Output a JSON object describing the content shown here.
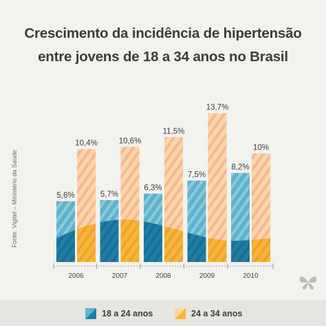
{
  "title": {
    "line1": "Crescimento da incidência de hipertensão",
    "line2": "entre jovens de 18 a 34 anos no Brasil"
  },
  "source": "Fonte: Vigitel – Ministério da Saúde",
  "colors": {
    "blue": "#5fb3cb",
    "blue_dark": "#1e7fa6",
    "orange": "#f7b53b",
    "orange_light": "#fbd89b",
    "background": "#f2f2ee"
  },
  "chart_data": {
    "type": "bar",
    "categories": [
      "2006",
      "2007",
      "2008",
      "2009",
      "2010"
    ],
    "series": [
      {
        "name": "18 a 24 anos",
        "values": [
          5.6,
          5.7,
          6.3,
          7.5,
          8.2
        ],
        "labels": [
          "5,6%",
          "5,7%",
          "6,3%",
          "7,5%",
          "8,2%"
        ],
        "color": "#5fb3cb"
      },
      {
        "name": "24 a 34 anos",
        "values": [
          10.4,
          10.6,
          11.5,
          13.7,
          10.0
        ],
        "labels": [
          "10,4%",
          "10,6%",
          "11,5%",
          "13,7%",
          "10%"
        ],
        "color": "#f7b53b"
      }
    ],
    "ylim": [
      0,
      15
    ],
    "grid": false,
    "legend": "bottom"
  },
  "legend": {
    "item1": "18 a 24 anos",
    "item2": "24 a 34 anos"
  },
  "logo_icon": "butterfly-icon"
}
